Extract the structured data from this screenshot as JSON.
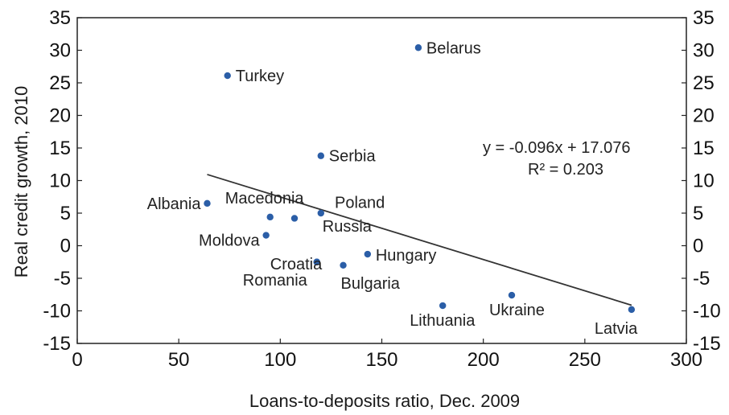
{
  "chart_data": {
    "type": "scatter",
    "title": "",
    "xlabel": "Loans-to-deposits ratio, Dec. 2009",
    "ylabel": "Real credit growth, 2010",
    "xlim": [
      0,
      300
    ],
    "ylim": [
      -15,
      35
    ],
    "x_ticks": [
      0,
      50,
      100,
      150,
      200,
      250,
      300
    ],
    "y_ticks": [
      35,
      30,
      25,
      20,
      15,
      10,
      5,
      0,
      -5,
      -10,
      -15
    ],
    "y_ticks_right": true,
    "grid": false,
    "marker_color": "#2b5ea7",
    "points": [
      {
        "label": "Belarus",
        "x": 168,
        "y": 30.4
      },
      {
        "label": "Turkey",
        "x": 74,
        "y": 26.1
      },
      {
        "label": "Serbia",
        "x": 120,
        "y": 13.8
      },
      {
        "label": "Albania",
        "x": 64,
        "y": 6.5
      },
      {
        "label": "Macedonia",
        "x": 95,
        "y": 4.4
      },
      {
        "label": "Poland",
        "x": 107,
        "y": 4.2
      },
      {
        "label": "Russia",
        "x": 120,
        "y": 5.0
      },
      {
        "label": "Moldova",
        "x": 93,
        "y": 1.6
      },
      {
        "label": "Croatia",
        "x": 118,
        "y": -2.5
      },
      {
        "label": "Hungary",
        "x": 143,
        "y": -1.3
      },
      {
        "label": "Romania",
        "x": 118,
        "y": -2.5
      },
      {
        "label": "Bulgaria",
        "x": 131,
        "y": -3.0
      },
      {
        "label": "Lithuania",
        "x": 180,
        "y": -9.2
      },
      {
        "label": "Ukraine",
        "x": 214,
        "y": -7.6
      },
      {
        "label": "Latvia",
        "x": 273,
        "y": -9.8
      }
    ],
    "trendline": {
      "slope": -0.096,
      "intercept": 17.076,
      "x_range": [
        64,
        273
      ],
      "equation": "y = -0.096x + 17.076",
      "r2": "R² = 0.203"
    }
  }
}
